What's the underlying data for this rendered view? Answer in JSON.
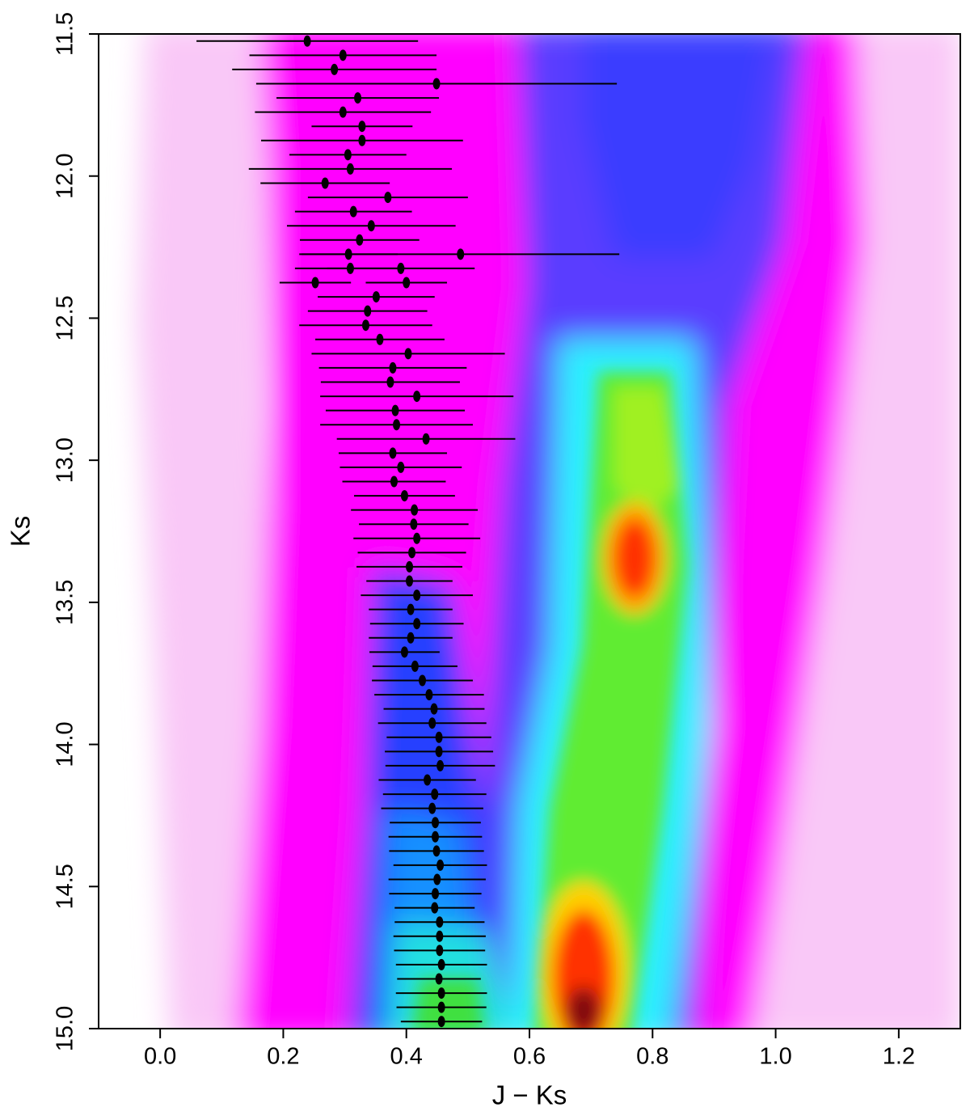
{
  "chart_data": {
    "type": "scatter",
    "xlabel": "J − Ks",
    "ylabel": "Ks",
    "xlim": [
      -0.1,
      1.3
    ],
    "ylim": [
      15.0,
      11.5
    ],
    "xticks": [
      {
        "value": 0,
        "label": "0.0"
      },
      0.2,
      0.4,
      0.6,
      0.8,
      {
        "value": 1,
        "label": "1.0"
      },
      1.2
    ],
    "yticks": [
      11.5,
      {
        "value": 12,
        "label": "12.0"
      },
      12.5,
      {
        "value": 13,
        "label": "13.0"
      },
      13.5,
      {
        "value": 14,
        "label": "14.0"
      },
      14.5,
      {
        "value": 15,
        "label": "15.0"
      }
    ],
    "series": [
      {
        "color": "#000000",
        "x": [
          0.239,
          0.297,
          0.283,
          0.449,
          0.321,
          0.297,
          0.328,
          0.328,
          0.305,
          0.309,
          0.268,
          0.37,
          0.314,
          0.343,
          0.324,
          0.488,
          0.306,
          0.309,
          0.391,
          0.252,
          0.4,
          0.351,
          0.337,
          0.334,
          0.357,
          0.403,
          0.378,
          0.374,
          0.417,
          0.382,
          0.384,
          0.432,
          0.378,
          0.391,
          0.38,
          0.397,
          0.413,
          0.412,
          0.417,
          0.409,
          0.405,
          0.405,
          0.417,
          0.407,
          0.417,
          0.407,
          0.397,
          0.414,
          0.426,
          0.437,
          0.445,
          0.442,
          0.453,
          0.453,
          0.455,
          0.434,
          0.446,
          0.442,
          0.447,
          0.447,
          0.449,
          0.455,
          0.45,
          0.447,
          0.446,
          0.454,
          0.454,
          0.454,
          0.457,
          0.453,
          0.457,
          0.457,
          0.457
        ],
        "y": [
          11.525,
          11.575,
          11.625,
          11.675,
          11.725,
          11.775,
          11.825,
          11.875,
          11.925,
          11.975,
          12.025,
          12.075,
          12.125,
          12.175,
          12.225,
          12.275,
          12.275,
          12.325,
          12.325,
          12.375,
          12.375,
          12.425,
          12.475,
          12.525,
          12.575,
          12.625,
          12.675,
          12.725,
          12.775,
          12.825,
          12.875,
          12.925,
          12.975,
          13.025,
          13.075,
          13.125,
          13.175,
          13.225,
          13.275,
          13.325,
          13.375,
          13.425,
          13.475,
          13.525,
          13.575,
          13.625,
          13.675,
          13.725,
          13.775,
          13.825,
          13.875,
          13.925,
          13.975,
          14.025,
          14.075,
          14.125,
          14.175,
          14.225,
          14.275,
          14.325,
          14.375,
          14.425,
          14.475,
          14.525,
          14.575,
          14.625,
          14.675,
          14.725,
          14.775,
          14.825,
          14.875,
          14.925,
          14.975
        ],
        "xerr": [
          0.18,
          0.152,
          0.166,
          0.293,
          0.132,
          0.143,
          0.082,
          0.164,
          0.095,
          0.165,
          0.105,
          0.13,
          0.095,
          0.137,
          0.097,
          0.258,
          0.08,
          0.09,
          0.12,
          0.058,
          0.066,
          0.095,
          0.097,
          0.108,
          0.105,
          0.157,
          0.12,
          0.113,
          0.157,
          0.113,
          0.124,
          0.145,
          0.088,
          0.099,
          0.084,
          0.082,
          0.103,
          0.089,
          0.103,
          0.088,
          0.086,
          0.07,
          0.091,
          0.068,
          0.076,
          0.068,
          0.057,
          0.069,
          0.082,
          0.089,
          0.082,
          0.088,
          0.085,
          0.088,
          0.089,
          0.079,
          0.084,
          0.083,
          0.074,
          0.076,
          0.077,
          0.076,
          0.079,
          0.075,
          0.065,
          0.073,
          0.075,
          0.074,
          0.074,
          0.068,
          0.074,
          0.073,
          0.066
        ]
      }
    ]
  }
}
